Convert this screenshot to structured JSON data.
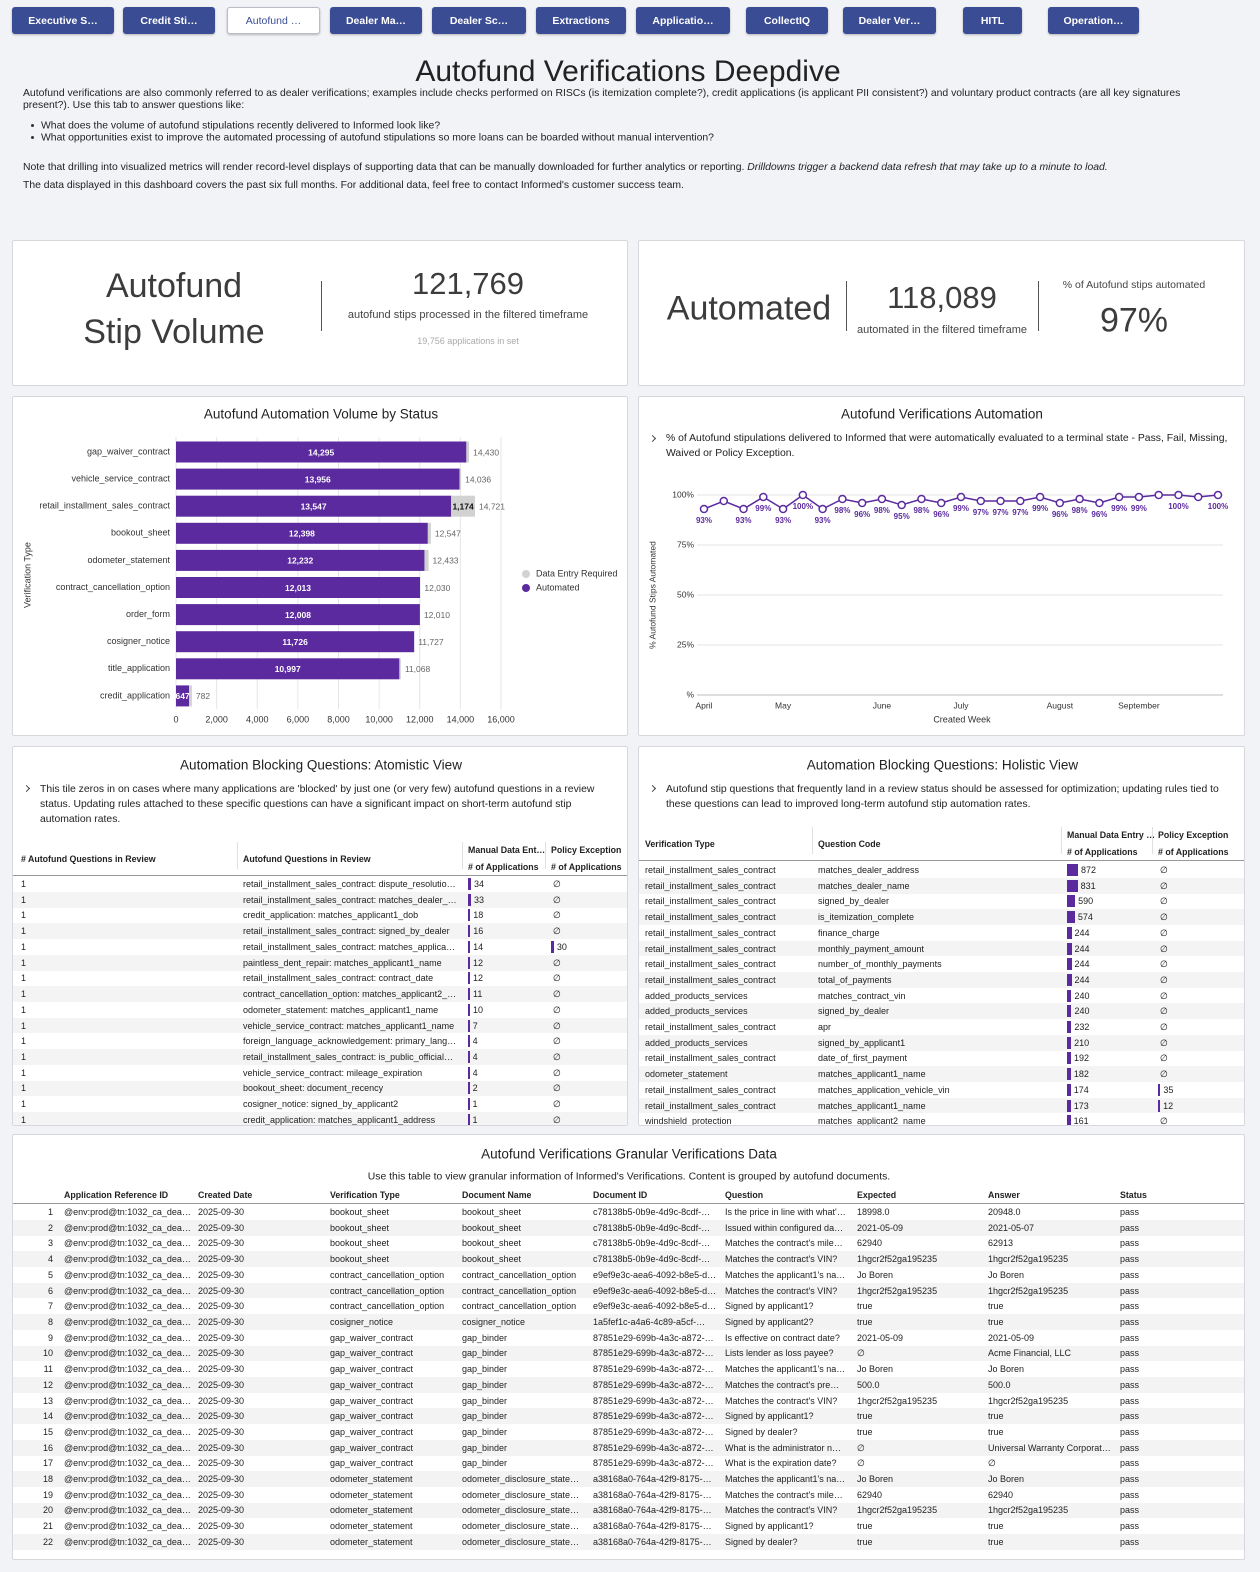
{
  "tabs": [
    "Executive S…",
    "Credit Sti…",
    "Autofund …",
    "Dealer Ma…",
    "Dealer Sc…",
    "Extractions",
    "Applicatio…",
    "CollectIQ",
    "Dealer Ver…",
    "HITL",
    "Operation…"
  ],
  "header": {
    "title": "Autofund Verifications Deepdive",
    "intro": "Autofund verifications are also commonly referred to as dealer verifications; examples include checks performed on RISCs (is itemization complete?), credit applications (is applicant PII consistent?) and voluntary product contracts (are all key signatures present?). Use this tab to answer questions like:",
    "bullets": [
      "What does the volume of autofund stipulations recently delivered to Informed look like?",
      "What opportunities exist to improve the automated processing of autofund stipulations so more loans can be boarded without manual intervention?"
    ],
    "note": "Note that drilling into visualized metrics will render record-level displays of supporting data that can be manually downloaded for further analytics or reporting.",
    "note_italic": "Drilldowns trigger a backend data refresh that may take up to a minute to load.",
    "coverage": "The data displayed in this dashboard covers the past six full months. For additional data, feel free to contact Informed's customer success team."
  },
  "kpi_volume": {
    "title": "Autofund Stip Volume",
    "value": "121,769",
    "caption": "autofund stips processed in the filtered timeframe",
    "apps_count": "19,756",
    "apps_label": "applications in set"
  },
  "kpi_automated": {
    "title": "Automated",
    "value": "118,089",
    "caption": "automated in the filtered timeframe",
    "pct_label": "% of Autofund stips automated",
    "pct": "97%"
  },
  "status_chart": {
    "type": "bar",
    "orientation": "horizontal",
    "stacked": true,
    "legend": "right",
    "grid": true,
    "title": "Autofund Automation Volume by Status",
    "y_label": "Verification Type",
    "categories": [
      "gap_waiver_contract",
      "vehicle_service_contract",
      "retail_installment_sales_contract",
      "bookout_sheet",
      "odometer_statement",
      "contract_cancellation_option",
      "order_form",
      "cosigner_notice",
      "title_application",
      "credit_application"
    ],
    "series": [
      {
        "name": "Automated",
        "color": "#5b2a9e",
        "values": [
          14295,
          13956,
          13547,
          12398,
          12232,
          12013,
          12008,
          11726,
          10997,
          647
        ],
        "value_labels": [
          "14,295",
          "13,956",
          "13,547",
          "12,398",
          "12,232",
          "12,013",
          "12,008",
          "11,726",
          "10,997",
          "647"
        ]
      },
      {
        "name": "Data Entry Required",
        "color": "#d2d2d2",
        "values": [
          135,
          80,
          1174,
          149,
          201,
          17,
          2,
          1,
          71,
          135
        ],
        "value_labels": [
          null,
          null,
          "1,174",
          null,
          null,
          null,
          null,
          null,
          null,
          null
        ]
      }
    ],
    "totals": [
      14430,
      14036,
      14721,
      12547,
      12433,
      12030,
      12010,
      11727,
      11068,
      782
    ],
    "total_labels": [
      "14,430",
      "14,036",
      "14,721",
      "12,547",
      "12,433",
      "12,030",
      "12,010",
      "11,727",
      "11,068",
      "782"
    ],
    "xlim": [
      0,
      16000
    ],
    "xticks": [
      0,
      {
        "value": 2000,
        "label": "2,000"
      },
      {
        "value": 4000,
        "label": "4,000"
      },
      {
        "value": 6000,
        "label": "6,000"
      },
      {
        "value": 8000,
        "label": "8,000"
      },
      {
        "value": 10000,
        "label": "10,000"
      },
      {
        "value": 12000,
        "label": "12,000"
      },
      {
        "value": 14000,
        "label": "14,000"
      },
      {
        "value": 16000,
        "label": "16,000"
      }
    ]
  },
  "automation_chart": {
    "type": "line",
    "grid": true,
    "title": "Autofund Verifications Automation",
    "description": "% of Autofund stipulations delivered to Informed that were automatically evaluated to a terminal state - Pass, Fail, Missing, Waived or Policy Exception.",
    "x_label": "Created Week",
    "y_label": "% Autofund Stips Automated",
    "categories": [
      "April",
      null,
      null,
      null,
      "May",
      null,
      null,
      null,
      null,
      "June",
      null,
      null,
      null,
      "July",
      null,
      null,
      null,
      null,
      "August",
      null,
      null,
      null,
      "September",
      null,
      null,
      null,
      null
    ],
    "series": [
      {
        "name": "% Autofund Stips Automated",
        "color": "#5b2a9e",
        "values": [
          93,
          97,
          93,
          99,
          93,
          100,
          93,
          98,
          96,
          98,
          95,
          98,
          96,
          99,
          97,
          97,
          97,
          99,
          96,
          98,
          96,
          99,
          99,
          100,
          100,
          99,
          100
        ],
        "value_labels": [
          "93%",
          null,
          "93%",
          "99%",
          "93%",
          "100%",
          "93%",
          "98%",
          "96%",
          "98%",
          "95%",
          "98%",
          "96%",
          "99%",
          "97%",
          "97%",
          "97%",
          "99%",
          "96%",
          "98%",
          "96%",
          "99%",
          "99%",
          null,
          "100%",
          null,
          "100%"
        ]
      }
    ],
    "ylim": [
      0,
      100
    ],
    "yticks": [
      {
        "value": 0,
        "label": "%"
      },
      {
        "value": 25,
        "label": "25%"
      },
      {
        "value": 50,
        "label": "50%"
      },
      {
        "value": 75,
        "label": "75%"
      },
      {
        "value": 100,
        "label": "100%"
      }
    ]
  },
  "atomistic": {
    "title": "Automation Blocking Questions: Atomistic View",
    "description": "This tile zeros in on cases where many applications are 'blocked' by just one (or very few) autofund questions in a review status. Updating rules attached to these specific questions can have a significant impact on short-term autofund stip automation rates.",
    "columns": [
      "# Autofund Questions in Review",
      "Autofund Questions in Review",
      "Manual Data Ent…",
      "Policy Exception"
    ],
    "subcolumns": [
      "# of Applications",
      "# of Applications"
    ],
    "rows": [
      [
        1,
        "retail_installment_sales_contract: dispute_resolutio…",
        34,
        "∅"
      ],
      [
        1,
        "retail_installment_sales_contract: matches_dealer_…",
        33,
        "∅"
      ],
      [
        1,
        "credit_application: matches_applicant1_dob",
        18,
        "∅"
      ],
      [
        1,
        "retail_installment_sales_contract: signed_by_dealer",
        16,
        "∅"
      ],
      [
        1,
        "retail_installment_sales_contract: matches_applica…",
        14,
        30
      ],
      [
        1,
        "paintless_dent_repair: matches_applicant1_name",
        12,
        "∅"
      ],
      [
        1,
        "retail_installment_sales_contract: contract_date",
        12,
        "∅"
      ],
      [
        1,
        "contract_cancellation_option: matches_applicant2_…",
        11,
        "∅"
      ],
      [
        1,
        "odometer_statement: matches_applicant1_name",
        10,
        "∅"
      ],
      [
        1,
        "vehicle_service_contract: matches_applicant1_name",
        7,
        "∅"
      ],
      [
        1,
        "foreign_language_acknowledgement: primary_lang…",
        4,
        "∅"
      ],
      [
        1,
        "retail_installment_sales_contract: is_public_official…",
        4,
        "∅"
      ],
      [
        1,
        "vehicle_service_contract: mileage_expiration",
        4,
        "∅"
      ],
      [
        1,
        "bookout_sheet: document_recency",
        2,
        "∅"
      ],
      [
        1,
        "cosigner_notice: signed_by_applicant2",
        1,
        "∅"
      ],
      [
        1,
        "credit_application: matches_applicant1_address",
        1,
        "∅"
      ]
    ]
  },
  "holistic": {
    "title": "Automation Blocking Questions: Holistic View",
    "description": "Autofund stip questions that frequently land in a review status should be assessed for optimization; updating rules tied to these questions can lead to improved long-term autofund stip automation rates.",
    "columns": [
      "Verification Type",
      "Question Code",
      "Manual Data Entry …",
      "Policy Exception"
    ],
    "subcolumns": [
      "# of Applications",
      "# of Applications"
    ],
    "rows": [
      [
        "retail_installment_sales_contract",
        "matches_dealer_address",
        872,
        "∅"
      ],
      [
        "retail_installment_sales_contract",
        "matches_dealer_name",
        831,
        "∅"
      ],
      [
        "retail_installment_sales_contract",
        "signed_by_dealer",
        590,
        "∅"
      ],
      [
        "retail_installment_sales_contract",
        "is_itemization_complete",
        574,
        "∅"
      ],
      [
        "retail_installment_sales_contract",
        "finance_charge",
        244,
        "∅"
      ],
      [
        "retail_installment_sales_contract",
        "monthly_payment_amount",
        244,
        "∅"
      ],
      [
        "retail_installment_sales_contract",
        "number_of_monthly_payments",
        244,
        "∅"
      ],
      [
        "retail_installment_sales_contract",
        "total_of_payments",
        244,
        "∅"
      ],
      [
        "added_products_services",
        "matches_contract_vin",
        240,
        "∅"
      ],
      [
        "added_products_services",
        "signed_by_dealer",
        240,
        "∅"
      ],
      [
        "retail_installment_sales_contract",
        "apr",
        232,
        "∅"
      ],
      [
        "added_products_services",
        "signed_by_applicant1",
        210,
        "∅"
      ],
      [
        "retail_installment_sales_contract",
        "date_of_first_payment",
        192,
        "∅"
      ],
      [
        "odometer_statement",
        "matches_applicant1_name",
        182,
        "∅"
      ],
      [
        "retail_installment_sales_contract",
        "matches_application_vehicle_vin",
        174,
        35
      ],
      [
        "retail_installment_sales_contract",
        "matches_applicant1_name",
        173,
        12
      ],
      [
        "windshield_protection",
        "matches_applicant2_name",
        161,
        "∅"
      ]
    ]
  },
  "granular": {
    "title": "Autofund Verifications Granular Verifications Data",
    "description": "Use this table to view granular information of Informed's Verifications. Content is grouped by autofund documents.",
    "columns": [
      "Application Reference ID",
      "Created Date",
      "Verification Type",
      "Document Name",
      "Document ID",
      "Question",
      "Expected",
      "Answer",
      "Status"
    ],
    "rows": [
      [
        1,
        "@env:prod@tn:1032_ca_dea…",
        "2025-09-30",
        "bookout_sheet",
        "bookout_sheet",
        "c78138b5-0b9e-4d9c-8cdf-…",
        "Is the price in line with what'…",
        "18998.0",
        "20948.0",
        "pass"
      ],
      [
        2,
        "@env:prod@tn:1032_ca_dea…",
        "2025-09-30",
        "bookout_sheet",
        "bookout_sheet",
        "c78138b5-0b9e-4d9c-8cdf-…",
        "Issued within configured da…",
        "2021-05-09",
        "2021-05-07",
        "pass"
      ],
      [
        3,
        "@env:prod@tn:1032_ca_dea…",
        "2025-09-30",
        "bookout_sheet",
        "bookout_sheet",
        "c78138b5-0b9e-4d9c-8cdf-…",
        "Matches the contract's mile…",
        "62940",
        "62913",
        "pass"
      ],
      [
        4,
        "@env:prod@tn:1032_ca_dea…",
        "2025-09-30",
        "bookout_sheet",
        "bookout_sheet",
        "c78138b5-0b9e-4d9c-8cdf-…",
        "Matches the contract's VIN?",
        "1hgcr2f52ga195235",
        "1hgcr2f52ga195235",
        "pass"
      ],
      [
        5,
        "@env:prod@tn:1032_ca_dea…",
        "2025-09-30",
        "contract_cancellation_option",
        "contract_cancellation_option",
        "e9ef9e3c-aea6-4092-b8e5-d…",
        "Matches the applicant1's na…",
        "Jo Boren",
        "Jo Boren",
        "pass"
      ],
      [
        6,
        "@env:prod@tn:1032_ca_dea…",
        "2025-09-30",
        "contract_cancellation_option",
        "contract_cancellation_option",
        "e9ef9e3c-aea6-4092-b8e5-d…",
        "Matches the contract's VIN?",
        "1hgcr2f52ga195235",
        "1hgcr2f52ga195235",
        "pass"
      ],
      [
        7,
        "@env:prod@tn:1032_ca_dea…",
        "2025-09-30",
        "contract_cancellation_option",
        "contract_cancellation_option",
        "e9ef9e3c-aea6-4092-b8e5-d…",
        "Signed by applicant1?",
        "true",
        "true",
        "pass"
      ],
      [
        8,
        "@env:prod@tn:1032_ca_dea…",
        "2025-09-30",
        "cosigner_notice",
        "cosigner_notice",
        "1a5fef1c-a4a6-4c89-a5cf-…",
        "Signed by applicant2?",
        "true",
        "true",
        "pass"
      ],
      [
        9,
        "@env:prod@tn:1032_ca_dea…",
        "2025-09-30",
        "gap_waiver_contract",
        "gap_binder",
        "87851e29-699b-4a3c-a872-…",
        "Is effective on contract date?",
        "2021-05-09",
        "2021-05-09",
        "pass"
      ],
      [
        10,
        "@env:prod@tn:1032_ca_dea…",
        "2025-09-30",
        "gap_waiver_contract",
        "gap_binder",
        "87851e29-699b-4a3c-a872-…",
        "Lists lender as loss payee?",
        "∅",
        "Acme Financial, LLC",
        "pass"
      ],
      [
        11,
        "@env:prod@tn:1032_ca_dea…",
        "2025-09-30",
        "gap_waiver_contract",
        "gap_binder",
        "87851e29-699b-4a3c-a872-…",
        "Matches the applicant1's na…",
        "Jo Boren",
        "Jo Boren",
        "pass"
      ],
      [
        12,
        "@env:prod@tn:1032_ca_dea…",
        "2025-09-30",
        "gap_waiver_contract",
        "gap_binder",
        "87851e29-699b-4a3c-a872-…",
        "Matches the contract's pre…",
        "500.0",
        "500.0",
        "pass"
      ],
      [
        13,
        "@env:prod@tn:1032_ca_dea…",
        "2025-09-30",
        "gap_waiver_contract",
        "gap_binder",
        "87851e29-699b-4a3c-a872-…",
        "Matches the contract's VIN?",
        "1hgcr2f52ga195235",
        "1hgcr2f52ga195235",
        "pass"
      ],
      [
        14,
        "@env:prod@tn:1032_ca_dea…",
        "2025-09-30",
        "gap_waiver_contract",
        "gap_binder",
        "87851e29-699b-4a3c-a872-…",
        "Signed by applicant1?",
        "true",
        "true",
        "pass"
      ],
      [
        15,
        "@env:prod@tn:1032_ca_dea…",
        "2025-09-30",
        "gap_waiver_contract",
        "gap_binder",
        "87851e29-699b-4a3c-a872-…",
        "Signed by dealer?",
        "true",
        "true",
        "pass"
      ],
      [
        16,
        "@env:prod@tn:1032_ca_dea…",
        "2025-09-30",
        "gap_waiver_contract",
        "gap_binder",
        "87851e29-699b-4a3c-a872-…",
        "What is the administrator n…",
        "∅",
        "Universal Warranty Corporat…",
        "pass"
      ],
      [
        17,
        "@env:prod@tn:1032_ca_dea…",
        "2025-09-30",
        "gap_waiver_contract",
        "gap_binder",
        "87851e29-699b-4a3c-a872-…",
        "What is the expiration date?",
        "∅",
        "∅",
        "pass"
      ],
      [
        18,
        "@env:prod@tn:1032_ca_dea…",
        "2025-09-30",
        "odometer_statement",
        "odometer_disclosure_state…",
        "a38168a0-764a-42f9-8175-…",
        "Matches the applicant1's na…",
        "Jo Boren",
        "Jo Boren",
        "pass"
      ],
      [
        19,
        "@env:prod@tn:1032_ca_dea…",
        "2025-09-30",
        "odometer_statement",
        "odometer_disclosure_state…",
        "a38168a0-764a-42f9-8175-…",
        "Matches the contract's mile…",
        "62940",
        "62940",
        "pass"
      ],
      [
        20,
        "@env:prod@tn:1032_ca_dea…",
        "2025-09-30",
        "odometer_statement",
        "odometer_disclosure_state…",
        "a38168a0-764a-42f9-8175-…",
        "Matches the contract's VIN?",
        "1hgcr2f52ga195235",
        "1hgcr2f52ga195235",
        "pass"
      ],
      [
        21,
        "@env:prod@tn:1032_ca_dea…",
        "2025-09-30",
        "odometer_statement",
        "odometer_disclosure_state…",
        "a38168a0-764a-42f9-8175-…",
        "Signed by applicant1?",
        "true",
        "true",
        "pass"
      ],
      [
        22,
        "@env:prod@tn:1032_ca_dea…",
        "2025-09-30",
        "odometer_statement",
        "odometer_disclosure_state…",
        "a38168a0-764a-42f9-8175-…",
        "Signed by dealer?",
        "true",
        "true",
        "pass"
      ]
    ]
  }
}
